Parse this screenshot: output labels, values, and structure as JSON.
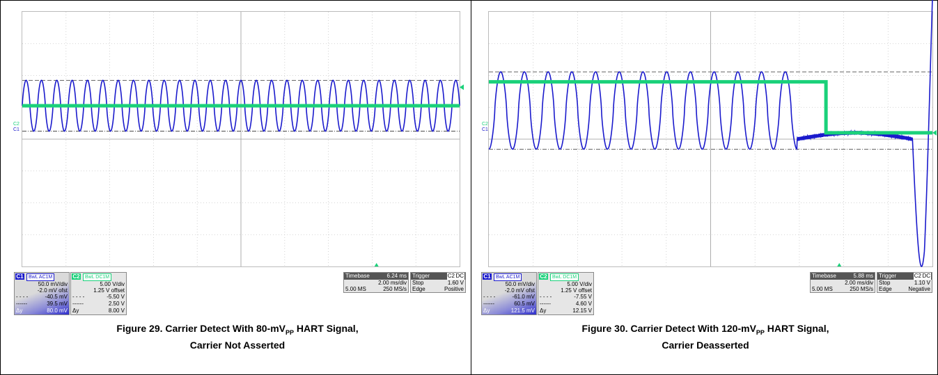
{
  "colors": {
    "ch1": "#1a1acc",
    "ch2": "#1ad17a",
    "grid": "#c8c8c8",
    "cursor": "#333333"
  },
  "chart_data": [
    {
      "type": "line",
      "caption_pre": "Figure 29. Carrier Detect With 80-mV",
      "caption_sub": "PP",
      "caption_post": " HART Signal,",
      "caption_line2": "Carrier Not Asserted",
      "x_unit": "ms",
      "xlim": [
        0,
        20
      ],
      "x_div": 2.0,
      "channel_labels": {
        "c2": "C2",
        "c1": "C1"
      },
      "series": [
        {
          "name": "C1",
          "kind": "sine",
          "cycles": 28.5,
          "amplitude_mv": 80.0,
          "offset_mv": -2.0,
          "v_div_mv": 50.0,
          "center_div": 1.05
        },
        {
          "name": "C2",
          "kind": "constant",
          "level_div": 1.05
        }
      ],
      "cursors_div": [
        1.65,
        0.0
      ],
      "ch1": {
        "tag": "C1",
        "coupling": "BwL AC1M",
        "vdiv": "50.0 mV/div",
        "ofst": "-2.0 mV ofst",
        "rows": [
          [
            "- - - -",
            "-40.5 mV"
          ],
          [
            "------",
            "39.5 mV"
          ],
          [
            "Δy",
            "80.0 mV"
          ]
        ]
      },
      "ch2": {
        "tag": "C2",
        "coupling": "BwL DC1M",
        "vdiv": "5.00 V/div",
        "ofst": "1.25 V offset",
        "rows": [
          [
            "- - - -",
            "-5.50 V"
          ],
          [
            "------",
            "2.50 V"
          ],
          [
            "Δy",
            "8.00 V"
          ]
        ]
      },
      "timebase": {
        "label": "Timebase",
        "value": "6.24 ms",
        "tdiv": "2.00 ms/div",
        "samples": "5.00 MS",
        "rate": "250 MS/s"
      },
      "trigger": {
        "label": "Trigger",
        "ch": "C2",
        "coupling": "DC",
        "mode": "Stop",
        "level": "1.60 V",
        "type": "Edge",
        "slope": "Positive"
      }
    },
    {
      "type": "line",
      "caption_pre": "Figure 30. Carrier Detect With 120-mV",
      "caption_sub": "PP",
      "caption_post": " HART Signal,",
      "caption_line2": "Carrier Deasserted",
      "x_unit": "ms",
      "xlim": [
        0,
        20
      ],
      "x_div": 2.0,
      "channel_labels": {
        "c2": "C2",
        "c1": "C1"
      },
      "series": [
        {
          "name": "C1",
          "kind": "sine_then_flat",
          "cycles_until": 13.0,
          "cycles": 19.5,
          "amplitude_mv": 121.5,
          "offset_mv": -2.0,
          "v_div_mv": 50.0
        },
        {
          "name": "C2",
          "kind": "step",
          "high_div": 1.8,
          "low_div": 0.2,
          "step_at_div": 7.6
        }
      ],
      "ch1": {
        "tag": "C1",
        "coupling": "BwL AC1M",
        "vdiv": "50.0 mV/div",
        "ofst": "-2.0 mV ofst",
        "rows": [
          [
            "- - - -",
            "-61.0 mV"
          ],
          [
            "------",
            "60.5 mV"
          ],
          [
            "Δy",
            "121.5 mV"
          ]
        ]
      },
      "ch2": {
        "tag": "C2",
        "coupling": "BwL DC1M",
        "vdiv": "5.00 V/div",
        "ofst": "1.25 V offset",
        "rows": [
          [
            "- - - -",
            "-7.55 V"
          ],
          [
            "------",
            "4.60 V"
          ],
          [
            "Δy",
            "12.15 V"
          ]
        ]
      },
      "timebase": {
        "label": "Timebase",
        "value": "5.88 ms",
        "tdiv": "2.00 ms/div",
        "samples": "5.00 MS",
        "rate": "250 MS/s"
      },
      "trigger": {
        "label": "Trigger",
        "ch": "C2",
        "coupling": "DC",
        "mode": "Stop",
        "level": "1.10 V",
        "type": "Edge",
        "slope": "Negative"
      }
    }
  ]
}
